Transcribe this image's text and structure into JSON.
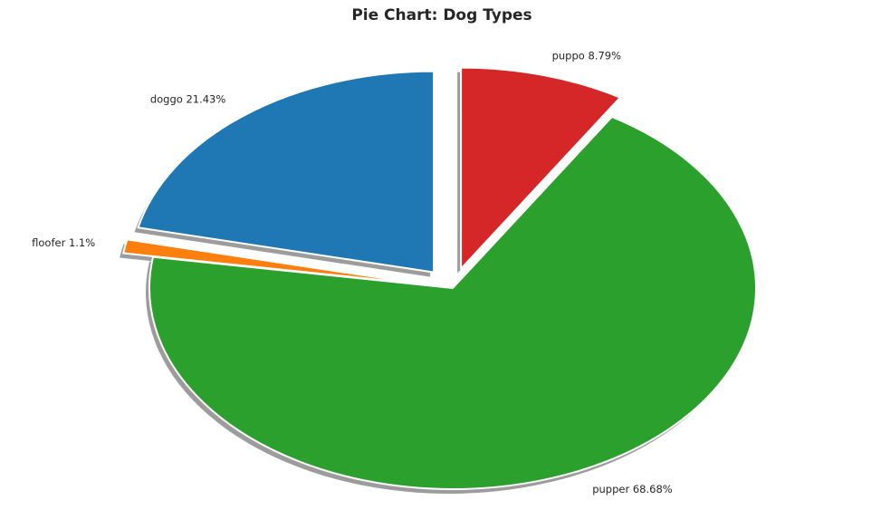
{
  "chart_data": {
    "type": "pie",
    "title": "Pie Chart: Dog Types",
    "slices": [
      {
        "label": "doggo",
        "pct_label": "21.43%",
        "value": 21.43,
        "color": "#1f77b4",
        "explode": true
      },
      {
        "label": "floofer",
        "pct_label": "1.1%",
        "value": 1.1,
        "color": "#ff7f0e",
        "explode": true
      },
      {
        "label": "pupper",
        "pct_label": "68.68%",
        "value": 68.68,
        "color": "#2ca02c",
        "explode": false
      },
      {
        "label": "puppo",
        "pct_label": "8.79%",
        "value": 8.79,
        "color": "#d62728",
        "explode": true
      }
    ],
    "start_angle_deg": 90,
    "direction": "counterclockwise",
    "shadow": true,
    "edge_color": "#ffffff"
  }
}
